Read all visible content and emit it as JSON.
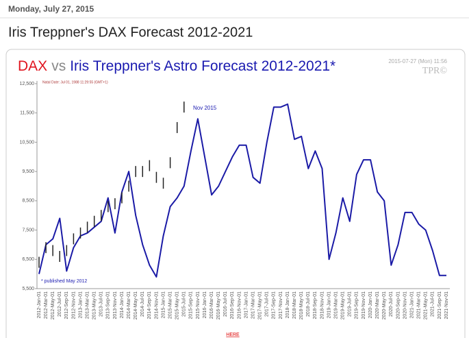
{
  "header": {
    "date": "Monday, July 27, 2015",
    "title": "Iris Treppner's DAX Forecast 2012-2021",
    "link": "HERE"
  },
  "chart_data": {
    "type": "line",
    "title_parts": [
      "DAX",
      "vs",
      "Iris Treppner's Astro Forecast 2012-2021*"
    ],
    "timestamp": "2015-07-27 (Mon) 11:56",
    "brand": "TPR©",
    "natal_note": "Natal Date: Jul 01, 1988 11:29:55 (GMT+1)",
    "annotations": [
      "Nov 2015",
      "* published May 2012"
    ],
    "categories": [
      "2012-Jan-01",
      "2012-Mar-01",
      "2012-May-01",
      "2012-Jul-01",
      "2012-Sep-01",
      "2012-Nov-01",
      "2013-Jan-01",
      "2013-Mar-01",
      "2013-May-01",
      "2013-Jul-01",
      "2013-Sep-01",
      "2013-Nov-01",
      "2014-Jan-01",
      "2014-Mar-01",
      "2014-May-01",
      "2014-Jul-01",
      "2014-Sep-01",
      "2014-Nov-01",
      "2015-Jan-01",
      "2015-Mar-01",
      "2015-May-01",
      "2015-Jul-01",
      "2015-Sep-01",
      "2015-Nov-01",
      "2016-Jan-01",
      "2016-Mar-01",
      "2016-May-01",
      "2016-Jul-01",
      "2016-Sep-01",
      "2016-Nov-01",
      "2017-Jan-01",
      "2017-Mar-01",
      "2017-May-01",
      "2017-Jul-01",
      "2017-Sep-01",
      "2017-Nov-01",
      "2018-Jan-01",
      "2018-Mar-01",
      "2018-May-01",
      "2018-Jul-01",
      "2018-Sep-01",
      "2018-Nov-01",
      "2019-Jan-01",
      "2019-Mar-01",
      "2019-May-01",
      "2019-Jul-01",
      "2019-Sep-01",
      "2019-Nov-01",
      "2020-Jan-01",
      "2020-Mar-01",
      "2020-May-01",
      "2020-Jul-01",
      "2020-Sep-01",
      "2020-Nov-01",
      "2021-Jan-01",
      "2021-Mar-01",
      "2021-May-01",
      "2021-Jul-01",
      "2021-Sep-01",
      "2021-Nov-01"
    ],
    "series": [
      {
        "name": "Forecast",
        "color": "#1a1aa6",
        "values": [
          6000,
          7000,
          7200,
          7900,
          6100,
          6900,
          7300,
          7400,
          7600,
          7800,
          8600,
          7400,
          8800,
          9500,
          8000,
          7000,
          6300,
          5900,
          7300,
          8300,
          8600,
          9000,
          10200,
          11300,
          10000,
          8700,
          9000,
          9500,
          10000,
          10400,
          10400,
          9300,
          9100,
          10500,
          11700,
          11700,
          11800,
          10600,
          10700,
          9600,
          10200,
          9600,
          6500,
          7400,
          8600,
          7800,
          9400,
          9900,
          9900,
          8800,
          8500,
          6300,
          7000,
          8100,
          8100,
          7700,
          7500,
          6800,
          5950,
          5950
        ]
      },
      {
        "name": "DAX",
        "color": "#222222",
        "values": [
          6400,
          6900,
          6800,
          6600,
          6800,
          7200,
          7400,
          7600,
          7800,
          8000,
          8300,
          8400,
          8600,
          9000,
          9500,
          9500,
          9700,
          9300,
          9100,
          9800,
          11000,
          11700,
          null,
          null,
          null,
          null,
          null,
          null,
          null,
          null,
          null,
          null,
          null,
          null,
          null,
          null,
          null,
          null,
          null,
          null,
          null,
          null,
          null,
          null,
          null,
          null,
          null,
          null,
          null,
          null,
          null,
          null,
          null,
          null,
          null,
          null,
          null,
          null,
          null,
          null
        ]
      }
    ],
    "ylim": [
      5500,
      12500
    ],
    "yticks": [
      {
        "value": 5500,
        "label": "5,500"
      },
      {
        "value": 6500,
        "label": "6,500"
      },
      {
        "value": 7500,
        "label": "7,500"
      },
      {
        "value": 8500,
        "label": "8,500"
      },
      {
        "value": 9500,
        "label": "9,500"
      },
      {
        "value": 10500,
        "label": "10,500"
      },
      {
        "value": 11500,
        "label": "11,500"
      },
      {
        "value": 12500,
        "label": "12,500"
      }
    ],
    "grid": false
  }
}
